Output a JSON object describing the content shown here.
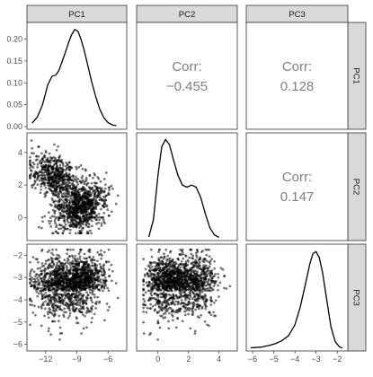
{
  "chart_data": {
    "type": "scatter",
    "title": "",
    "variables": [
      "PC1",
      "PC2",
      "PC3"
    ],
    "strip_top": [
      "PC1",
      "PC2",
      "PC3"
    ],
    "strip_right": [
      "PC1",
      "PC2",
      "PC3"
    ],
    "axes": {
      "PC1": {
        "range": [
          -13.8,
          -4.2
        ],
        "ticks": [
          -12,
          -9,
          -6
        ],
        "tick_labels": [
          "-12",
          "-9",
          "-6"
        ]
      },
      "PC2": {
        "range": [
          -1.4,
          5.2
        ],
        "ticks": [
          0,
          2,
          4
        ],
        "tick_labels": [
          "0",
          "2",
          "4"
        ]
      },
      "PC3": {
        "range": [
          -6.3,
          -1.5
        ],
        "ticks": [
          -6,
          -5,
          -4,
          -3,
          -2
        ],
        "tick_labels": [
          "-6",
          "-5",
          "-4",
          "-3",
          "-2"
        ]
      }
    },
    "density_PC1": {
      "ylim": [
        0,
        0.23
      ],
      "yticks": [
        0.0,
        0.05,
        0.1,
        0.15,
        0.2
      ],
      "ytick_labels": [
        "0.00",
        "0.05",
        "0.10",
        "0.15",
        "0.20"
      ],
      "x": [
        -13.3,
        -12.8,
        -12.3,
        -11.8,
        -11.4,
        -11.0,
        -10.7,
        -10.4,
        -10.1,
        -9.8,
        -9.5,
        -9.2,
        -8.9,
        -8.6,
        -8.3,
        -8.0,
        -7.6,
        -7.2,
        -6.8,
        -6.4,
        -6.0,
        -5.6,
        -5.2
      ],
      "y": [
        0.008,
        0.022,
        0.05,
        0.095,
        0.115,
        0.118,
        0.13,
        0.15,
        0.17,
        0.192,
        0.21,
        0.222,
        0.218,
        0.2,
        0.175,
        0.145,
        0.105,
        0.07,
        0.04,
        0.02,
        0.009,
        0.004,
        0.002
      ]
    },
    "density_PC2": {
      "x": [
        -0.6,
        -0.3,
        0.0,
        0.25,
        0.5,
        0.75,
        1.0,
        1.3,
        1.6,
        1.9,
        2.2,
        2.5,
        2.8,
        3.1,
        3.4,
        3.7,
        4.0
      ],
      "y": [
        0.01,
        0.18,
        0.62,
        0.9,
        0.97,
        0.92,
        0.78,
        0.62,
        0.52,
        0.5,
        0.52,
        0.5,
        0.4,
        0.24,
        0.1,
        0.03,
        0.005
      ]
    },
    "density_PC3": {
      "x": [
        -6.1,
        -5.6,
        -5.2,
        -4.9,
        -4.6,
        -4.3,
        -4.0,
        -3.75,
        -3.5,
        -3.3,
        -3.15,
        -3.0,
        -2.85,
        -2.7,
        -2.5,
        -2.3,
        -2.1,
        -1.9,
        -1.75
      ],
      "y": [
        0.005,
        0.012,
        0.03,
        0.05,
        0.08,
        0.13,
        0.24,
        0.42,
        0.66,
        0.86,
        0.97,
        0.99,
        0.93,
        0.78,
        0.5,
        0.22,
        0.07,
        0.015,
        0.003
      ]
    },
    "correlations": [
      {
        "label": "Corr:",
        "value": "−0.455",
        "pair": [
          "PC1",
          "PC2"
        ]
      },
      {
        "label": "Corr:",
        "value": "0.128",
        "pair": [
          "PC1",
          "PC3"
        ]
      },
      {
        "label": "Corr:",
        "value": "0.147",
        "pair": [
          "PC2",
          "PC3"
        ]
      }
    ]
  }
}
